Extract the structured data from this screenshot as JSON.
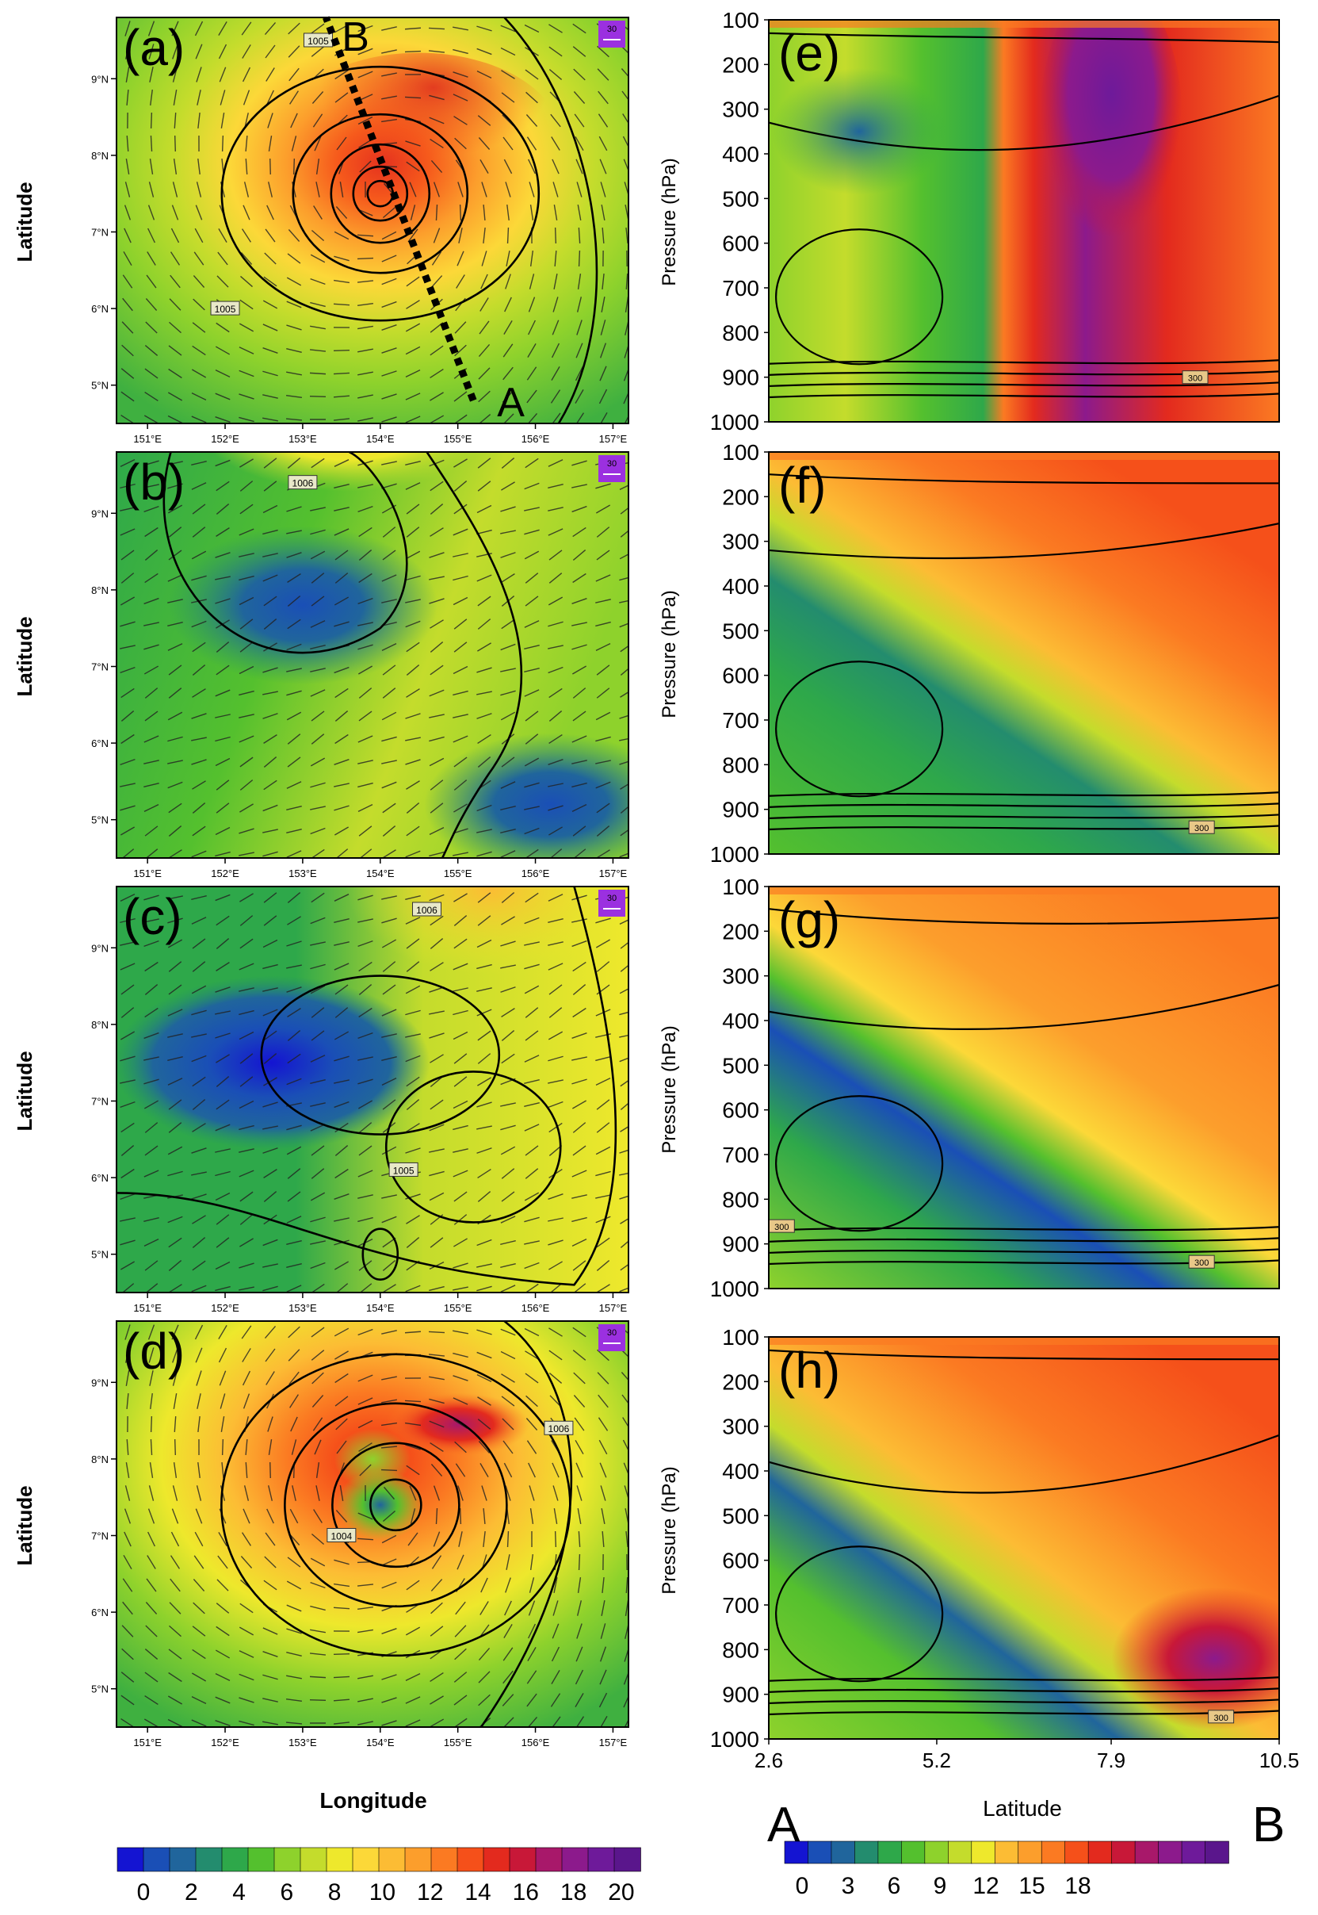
{
  "figure": {
    "map_panels": [
      {
        "label": "(a)",
        "contour_labels": [
          "1005",
          "1005"
        ],
        "wind_ref": "30",
        "cross_section": {
          "start_label": "A",
          "end_label": "B",
          "start": [
            155.2,
            4.8
          ],
          "end": [
            153.3,
            9.8
          ]
        }
      },
      {
        "label": "(b)",
        "contour_labels": [
          "1006"
        ],
        "wind_ref": "30"
      },
      {
        "label": "(c)",
        "contour_labels": [
          "1006",
          "1005"
        ],
        "wind_ref": "30"
      },
      {
        "label": "(d)",
        "contour_labels": [
          "1006",
          "1004"
        ],
        "wind_ref": "30"
      }
    ],
    "section_panels": [
      {
        "label": "(e)",
        "contour_labels": [
          "300"
        ]
      },
      {
        "label": "(f)",
        "contour_labels": [
          "300"
        ]
      },
      {
        "label": "(g)",
        "contour_labels": [
          "300",
          "300"
        ]
      },
      {
        "label": "(h)",
        "contour_labels": [
          "300"
        ]
      }
    ],
    "map_ylabel": "Latitude",
    "map_xlabel": "Longitude",
    "section_ylabel": "Pressure (hPa)",
    "section_xlabel": "Latitude",
    "section_endpoints": {
      "start": "A",
      "end": "B"
    },
    "left_colorbar": {
      "ticks": [
        "0",
        "2",
        "4",
        "6",
        "8",
        "10",
        "12",
        "14",
        "16",
        "18",
        "20"
      ]
    },
    "right_colorbar": {
      "ticks": [
        "0",
        "3",
        "6",
        "9",
        "12",
        "15",
        "18"
      ]
    }
  },
  "chart_data": [
    {
      "type": "heatmap",
      "panels": [
        "(a)",
        "(b)",
        "(c)",
        "(d)"
      ],
      "x_ticks": [
        "151°E",
        "152°E",
        "153°E",
        "154°E",
        "155°E",
        "156°E",
        "157°E"
      ],
      "y_ticks": [
        "5°N",
        "6°N",
        "7°N",
        "8°N",
        "9°N"
      ],
      "xlim": [
        150.6,
        157.2
      ],
      "ylim": [
        4.5,
        9.8
      ],
      "xlabel": "Longitude",
      "ylabel": "Latitude",
      "colorbar_ticks": [
        0,
        2,
        4,
        6,
        8,
        10,
        12,
        14,
        16,
        18,
        20
      ],
      "colormap": [
        "#1414d2",
        "#1a4fb6",
        "#20659c",
        "#238c6e",
        "#2ea84a",
        "#54c02e",
        "#8ed22c",
        "#c4dc2c",
        "#eee82c",
        "#fcd838",
        "#fcbc34",
        "#fc9e2c",
        "#fb7a22",
        "#f5501a",
        "#e32a1e",
        "#c81838",
        "#a8186a",
        "#8c1a8c",
        "#6e1a9a",
        "#5a168c"
      ],
      "series": [
        {
          "panel": "(a)",
          "field": "center 154.0°E 7.5°N, max ≈ 16 (northeast quadrant), background ≈ 6–9; isobar center 154.0°E 7.5°N"
        },
        {
          "panel": "(b)",
          "field": "min ≈ 2–3 near 153.0°E 7.8°N and southeast 155.5–157°E 5°N; background ≈ 5–9"
        },
        {
          "panel": "(c)",
          "field": "min ≈ 1–2 near 152.5°E 7.5°N; max ≈ 11 near 155.0°E 8.8°N"
        },
        {
          "panel": "(d)",
          "field": "center 154.0°E 7.4°N ≈ 5, ring max ≈ 17 near 155.0°E 8.4°N"
        }
      ]
    },
    {
      "type": "heatmap",
      "panels": [
        "(e)",
        "(f)",
        "(g)",
        "(h)"
      ],
      "x_ticks": [
        "2.6",
        "5.2",
        "7.9",
        "10.5"
      ],
      "y_ticks": [
        "100",
        "200",
        "300",
        "400",
        "500",
        "600",
        "700",
        "800",
        "900",
        "1000"
      ],
      "xlim": [
        2.6,
        10.5
      ],
      "ylim": [
        1000,
        100
      ],
      "xlabel": "Latitude",
      "ylabel": "Pressure (hPa)",
      "colorbar_ticks": [
        0,
        3,
        6,
        9,
        12,
        15,
        18
      ],
      "series": [
        {
          "panel": "(e)",
          "field": "sharp boundary near 6.8°N; max ≈ 20 at 300–600 hPa near 7.5–8°N; south side ≈ 3–8"
        },
        {
          "panel": "(f)",
          "field": "tilted moist boundary from 5°N at 900 hPa to 7.5°N at 300 hPa; south side min ≈ 3 at 400–600 hPa"
        },
        {
          "panel": "(g)",
          "field": "tilted band; min ≈ 1 near 5–6°N 500–700 hPa; north side ≈ 13–16"
        },
        {
          "panel": "(h)",
          "field": "boundary near 6.7°N below 600 hPa; max ≈ 19 near 9.5°N 800 hPa"
        }
      ]
    }
  ]
}
